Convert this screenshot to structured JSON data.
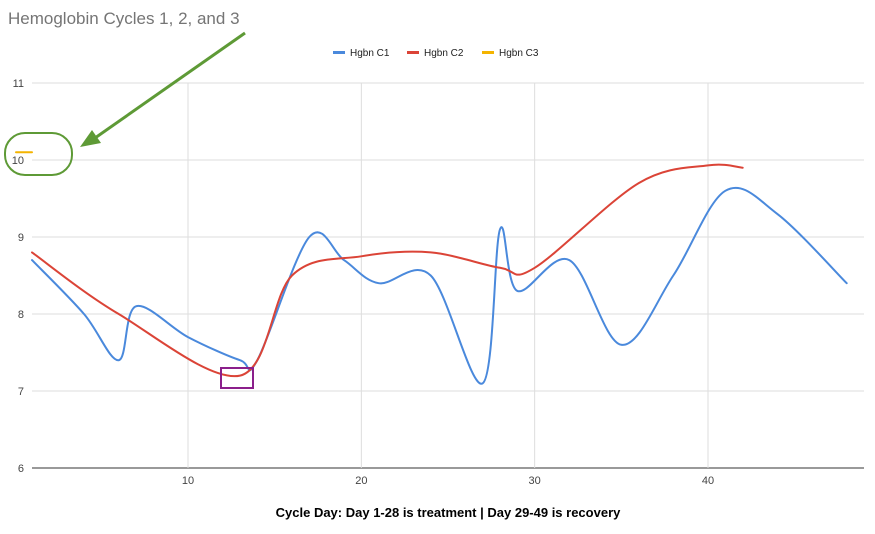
{
  "chart_data": {
    "type": "line",
    "title": "Hemoglobin Cycles 1, 2, and 3",
    "xlabel": "Cycle Day: Day 1-28 is treatment | Day 29-49 is recovery",
    "ylabel": "",
    "xlim": [
      1,
      49
    ],
    "ylim": [
      6,
      11
    ],
    "x_ticks": [
      10,
      20,
      30,
      40
    ],
    "y_ticks": [
      6,
      7,
      8,
      9,
      10,
      11
    ],
    "grid": true,
    "legend_position": "top",
    "series": [
      {
        "name": "Hgbn C1",
        "color": "#4a89dc",
        "x": [
          1,
          4,
          6,
          7,
          10,
          13,
          14,
          17,
          19,
          21,
          24,
          27,
          28,
          29,
          32,
          35,
          38,
          41,
          44,
          48
        ],
        "y": [
          8.7,
          8.0,
          7.4,
          8.1,
          7.7,
          7.4,
          7.4,
          9.0,
          8.7,
          8.4,
          8.5,
          7.1,
          9.1,
          8.3,
          8.7,
          7.6,
          8.5,
          9.6,
          9.3,
          8.4
        ]
      },
      {
        "name": "Hgbn C2",
        "color": "#db4437",
        "x": [
          1,
          6,
          13,
          16,
          20,
          24,
          28,
          30,
          36,
          40,
          42
        ],
        "y": [
          8.8,
          8.0,
          7.2,
          8.5,
          8.75,
          8.8,
          8.6,
          8.6,
          9.7,
          9.93,
          9.9
        ]
      },
      {
        "name": "Hgbn C3",
        "color": "#f4b400",
        "x": [
          0,
          1
        ],
        "y": [
          10.1,
          10.1
        ]
      }
    ]
  }
}
